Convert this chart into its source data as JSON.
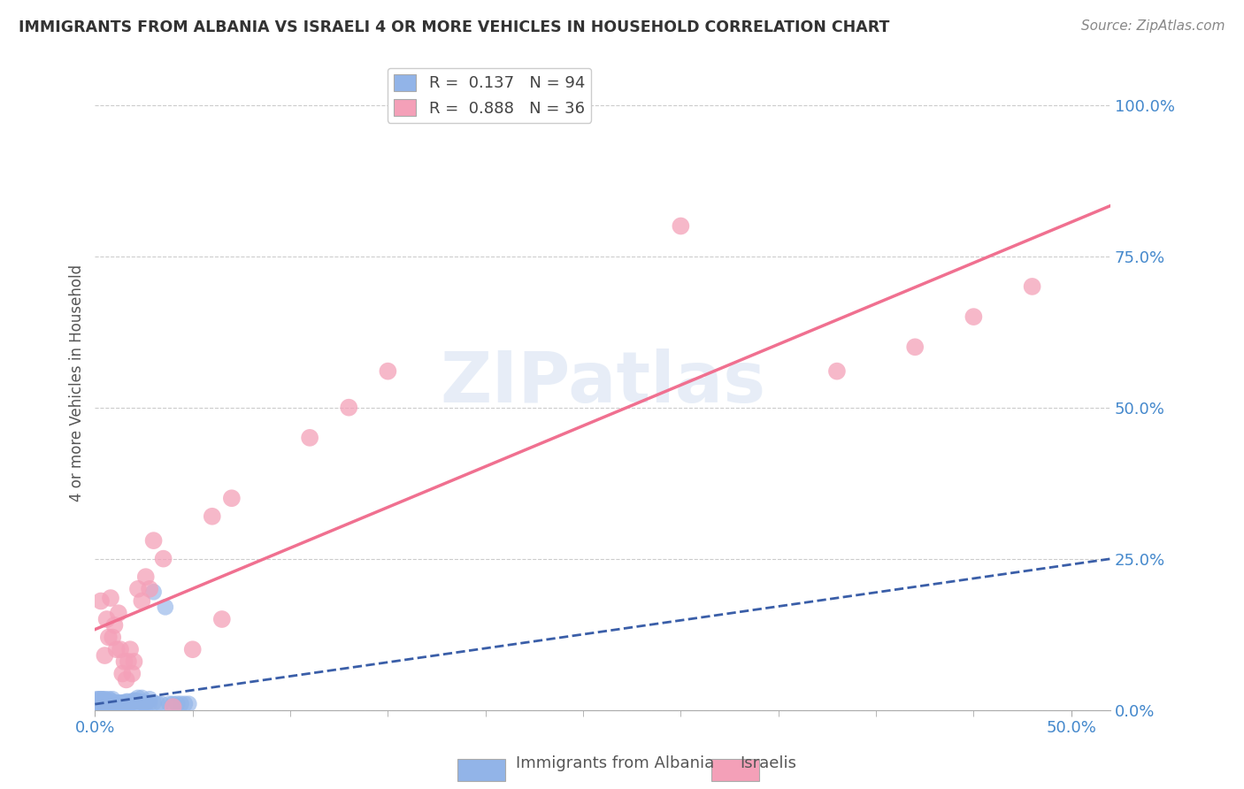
{
  "title": "IMMIGRANTS FROM ALBANIA VS ISRAELI 4 OR MORE VEHICLES IN HOUSEHOLD CORRELATION CHART",
  "source": "Source: ZipAtlas.com",
  "ylabel": "4 or more Vehicles in Household",
  "ytick_labels": [
    "0.0%",
    "25.0%",
    "50.0%",
    "75.0%",
    "100.0%"
  ],
  "ytick_values": [
    0.0,
    0.25,
    0.5,
    0.75,
    1.0
  ],
  "xlim": [
    0.0,
    0.52
  ],
  "ylim": [
    0.0,
    1.08
  ],
  "albania_color": "#92b4e8",
  "israelis_color": "#f4a0b8",
  "albania_line_color": "#3a5ea8",
  "israelis_line_color": "#f07090",
  "background_color": "#ffffff",
  "grid_color": "#cccccc",
  "albania_x": [
    0.001,
    0.001,
    0.001,
    0.001,
    0.001,
    0.002,
    0.002,
    0.002,
    0.002,
    0.002,
    0.003,
    0.003,
    0.003,
    0.003,
    0.004,
    0.004,
    0.004,
    0.004,
    0.005,
    0.005,
    0.005,
    0.005,
    0.006,
    0.006,
    0.006,
    0.007,
    0.007,
    0.007,
    0.008,
    0.008,
    0.008,
    0.009,
    0.009,
    0.009,
    0.01,
    0.01,
    0.01,
    0.011,
    0.011,
    0.012,
    0.012,
    0.013,
    0.013,
    0.014,
    0.014,
    0.015,
    0.015,
    0.016,
    0.016,
    0.017,
    0.017,
    0.018,
    0.018,
    0.019,
    0.019,
    0.02,
    0.02,
    0.021,
    0.021,
    0.022,
    0.022,
    0.023,
    0.023,
    0.024,
    0.024,
    0.025,
    0.025,
    0.026,
    0.026,
    0.028,
    0.028,
    0.03,
    0.03,
    0.032,
    0.034,
    0.036,
    0.038,
    0.04,
    0.042,
    0.044,
    0.046,
    0.048,
    0.001,
    0.001,
    0.002,
    0.002,
    0.003,
    0.003,
    0.004,
    0.004,
    0.005,
    0.006,
    0.007,
    0.008,
    0.009
  ],
  "albania_y": [
    0.01,
    0.012,
    0.01,
    0.012,
    0.01,
    0.01,
    0.012,
    0.01,
    0.012,
    0.01,
    0.01,
    0.012,
    0.01,
    0.012,
    0.01,
    0.012,
    0.01,
    0.012,
    0.01,
    0.012,
    0.01,
    0.012,
    0.01,
    0.012,
    0.01,
    0.01,
    0.012,
    0.01,
    0.01,
    0.012,
    0.01,
    0.01,
    0.012,
    0.01,
    0.01,
    0.012,
    0.01,
    0.01,
    0.012,
    0.01,
    0.012,
    0.01,
    0.012,
    0.01,
    0.012,
    0.01,
    0.012,
    0.01,
    0.014,
    0.01,
    0.014,
    0.01,
    0.012,
    0.01,
    0.012,
    0.016,
    0.015,
    0.015,
    0.014,
    0.02,
    0.014,
    0.014,
    0.012,
    0.02,
    0.012,
    0.01,
    0.012,
    0.01,
    0.012,
    0.018,
    0.012,
    0.195,
    0.012,
    0.01,
    0.01,
    0.17,
    0.01,
    0.01,
    0.01,
    0.01,
    0.01,
    0.01,
    0.018,
    0.016,
    0.016,
    0.018,
    0.018,
    0.016,
    0.018,
    0.016,
    0.018,
    0.016,
    0.018,
    0.016,
    0.018
  ],
  "israelis_x": [
    0.003,
    0.005,
    0.006,
    0.007,
    0.008,
    0.009,
    0.01,
    0.011,
    0.012,
    0.013,
    0.014,
    0.015,
    0.016,
    0.017,
    0.018,
    0.019,
    0.02,
    0.022,
    0.024,
    0.026,
    0.028,
    0.03,
    0.035,
    0.04,
    0.05,
    0.06,
    0.065,
    0.07,
    0.11,
    0.13,
    0.15,
    0.3,
    0.38,
    0.42,
    0.45,
    0.48
  ],
  "israelis_y": [
    0.18,
    0.09,
    0.15,
    0.12,
    0.185,
    0.12,
    0.14,
    0.1,
    0.16,
    0.1,
    0.06,
    0.08,
    0.05,
    0.08,
    0.1,
    0.06,
    0.08,
    0.2,
    0.18,
    0.22,
    0.2,
    0.28,
    0.25,
    0.005,
    0.1,
    0.32,
    0.15,
    0.35,
    0.45,
    0.5,
    0.56,
    0.8,
    0.56,
    0.6,
    0.65,
    0.7
  ]
}
